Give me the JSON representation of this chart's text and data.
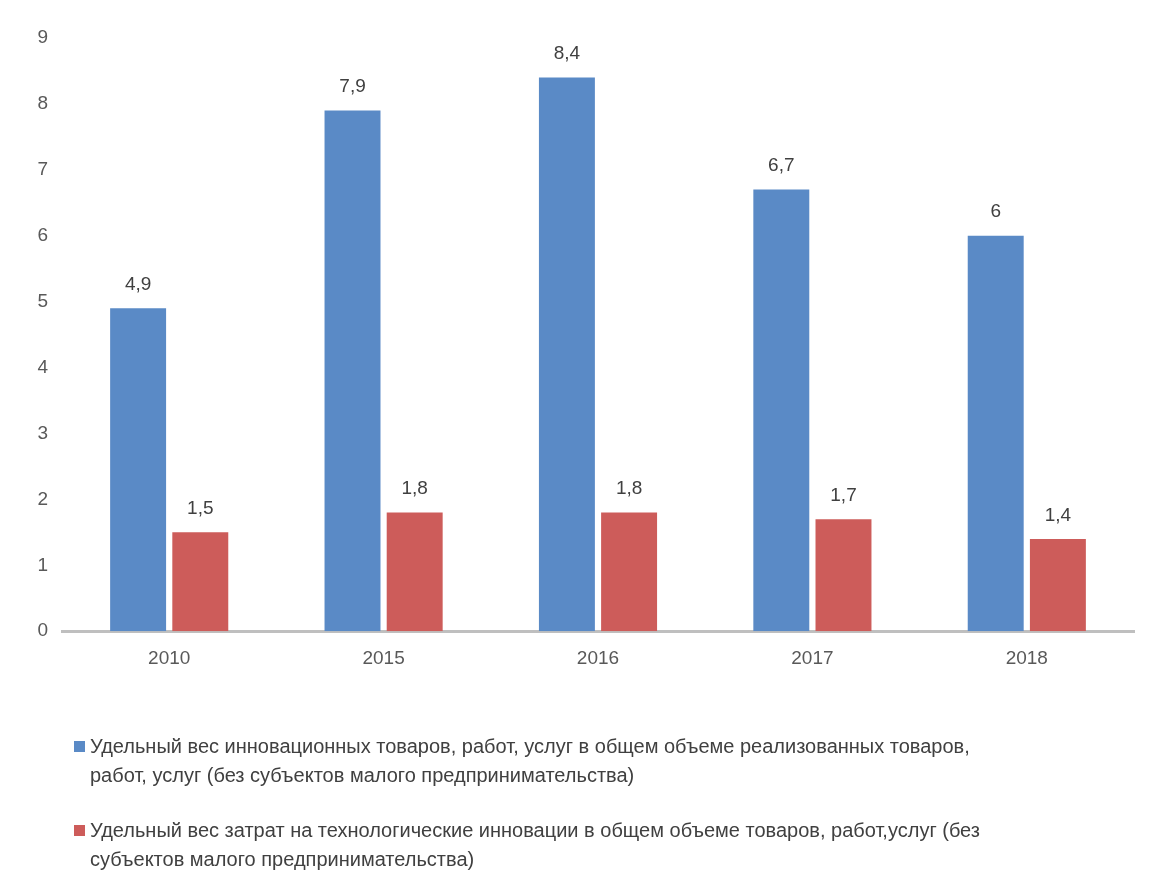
{
  "chart_data": {
    "type": "bar",
    "categories": [
      "2010",
      "2015",
      "2016",
      "2017",
      "2018"
    ],
    "series": [
      {
        "name": "Удельный вес инновационных товаров, работ, услуг в общем объеме реализованных товаров, работ, услуг (без субъектов малого предпринимательства)",
        "color": "#5a8ac6",
        "values": [
          4.9,
          7.9,
          8.4,
          6.7,
          6
        ],
        "value_labels": [
          "4,9",
          "7,9",
          "8,4",
          "6,7",
          "6"
        ]
      },
      {
        "name": "Удельный вес затрат на технологические инновации в общем объеме товаров, работ,услуг (без субъектов малого предпринимательства)",
        "color": "#cd5c5a",
        "values": [
          1.5,
          1.8,
          1.8,
          1.7,
          1.4
        ],
        "value_labels": [
          "1,5",
          "1,8",
          "1,8",
          "1,7",
          "1,4"
        ]
      }
    ],
    "ylim": [
      0,
      9
    ],
    "yticks": [
      0,
      1,
      2,
      3,
      4,
      5,
      6,
      7,
      8,
      9
    ],
    "grid": false,
    "legend": "bottom"
  }
}
